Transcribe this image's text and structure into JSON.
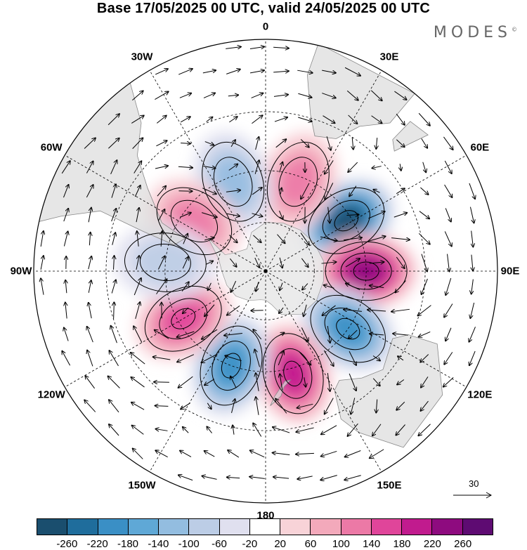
{
  "title": "Base 17/05/2025 00 UTC, valid 24/05/2025 00 UTC",
  "brand": {
    "name": "MODES",
    "mark": "©"
  },
  "longitude_labels": [
    "0",
    "30E",
    "60E",
    "90E",
    "120E",
    "150E",
    "180",
    "150W",
    "120W",
    "90W",
    "60W",
    "30W"
  ],
  "vector_reference": {
    "value": "30",
    "icon": "arrow-right-icon"
  },
  "colorbar": {
    "colors": [
      "#1a4e6e",
      "#1f6d9c",
      "#3a8fc5",
      "#5fa8d6",
      "#93bde0",
      "#bccde6",
      "#e0e0ef",
      "#ffffff",
      "#f8d3d8",
      "#f3a9bb",
      "#ec79a6",
      "#e0459a",
      "#c11b8e",
      "#8e0b7f",
      "#5e0b72"
    ],
    "ticks": [
      "-260",
      "-220",
      "-180",
      "-140",
      "-100",
      "-60",
      "-20",
      "20",
      "60",
      "100",
      "140",
      "180",
      "220",
      "260"
    ]
  },
  "chart_data": {
    "type": "heatmap",
    "projection": "polar stereographic, south pole",
    "field": "anomaly",
    "anomaly_centers": [
      {
        "lon": 58,
        "lat": -52,
        "value": -280,
        "sign": "negative"
      },
      {
        "lon": 90,
        "lat": -50,
        "value": 250,
        "sign": "positive"
      },
      {
        "lon": 125,
        "lat": -50,
        "value": -230,
        "sign": "negative"
      },
      {
        "lon": 165,
        "lat": -48,
        "value": 200,
        "sign": "positive"
      },
      {
        "lon": -160,
        "lat": -50,
        "value": -220,
        "sign": "negative"
      },
      {
        "lon": -120,
        "lat": -52,
        "value": 180,
        "sign": "positive"
      },
      {
        "lon": 20,
        "lat": -52,
        "value": 120,
        "sign": "positive"
      },
      {
        "lon": -20,
        "lat": -52,
        "value": -140,
        "sign": "negative"
      },
      {
        "lon": -55,
        "lat": -55,
        "value": 120,
        "sign": "positive"
      },
      {
        "lon": -85,
        "lat": -50,
        "value": -80,
        "sign": "negative"
      }
    ]
  }
}
